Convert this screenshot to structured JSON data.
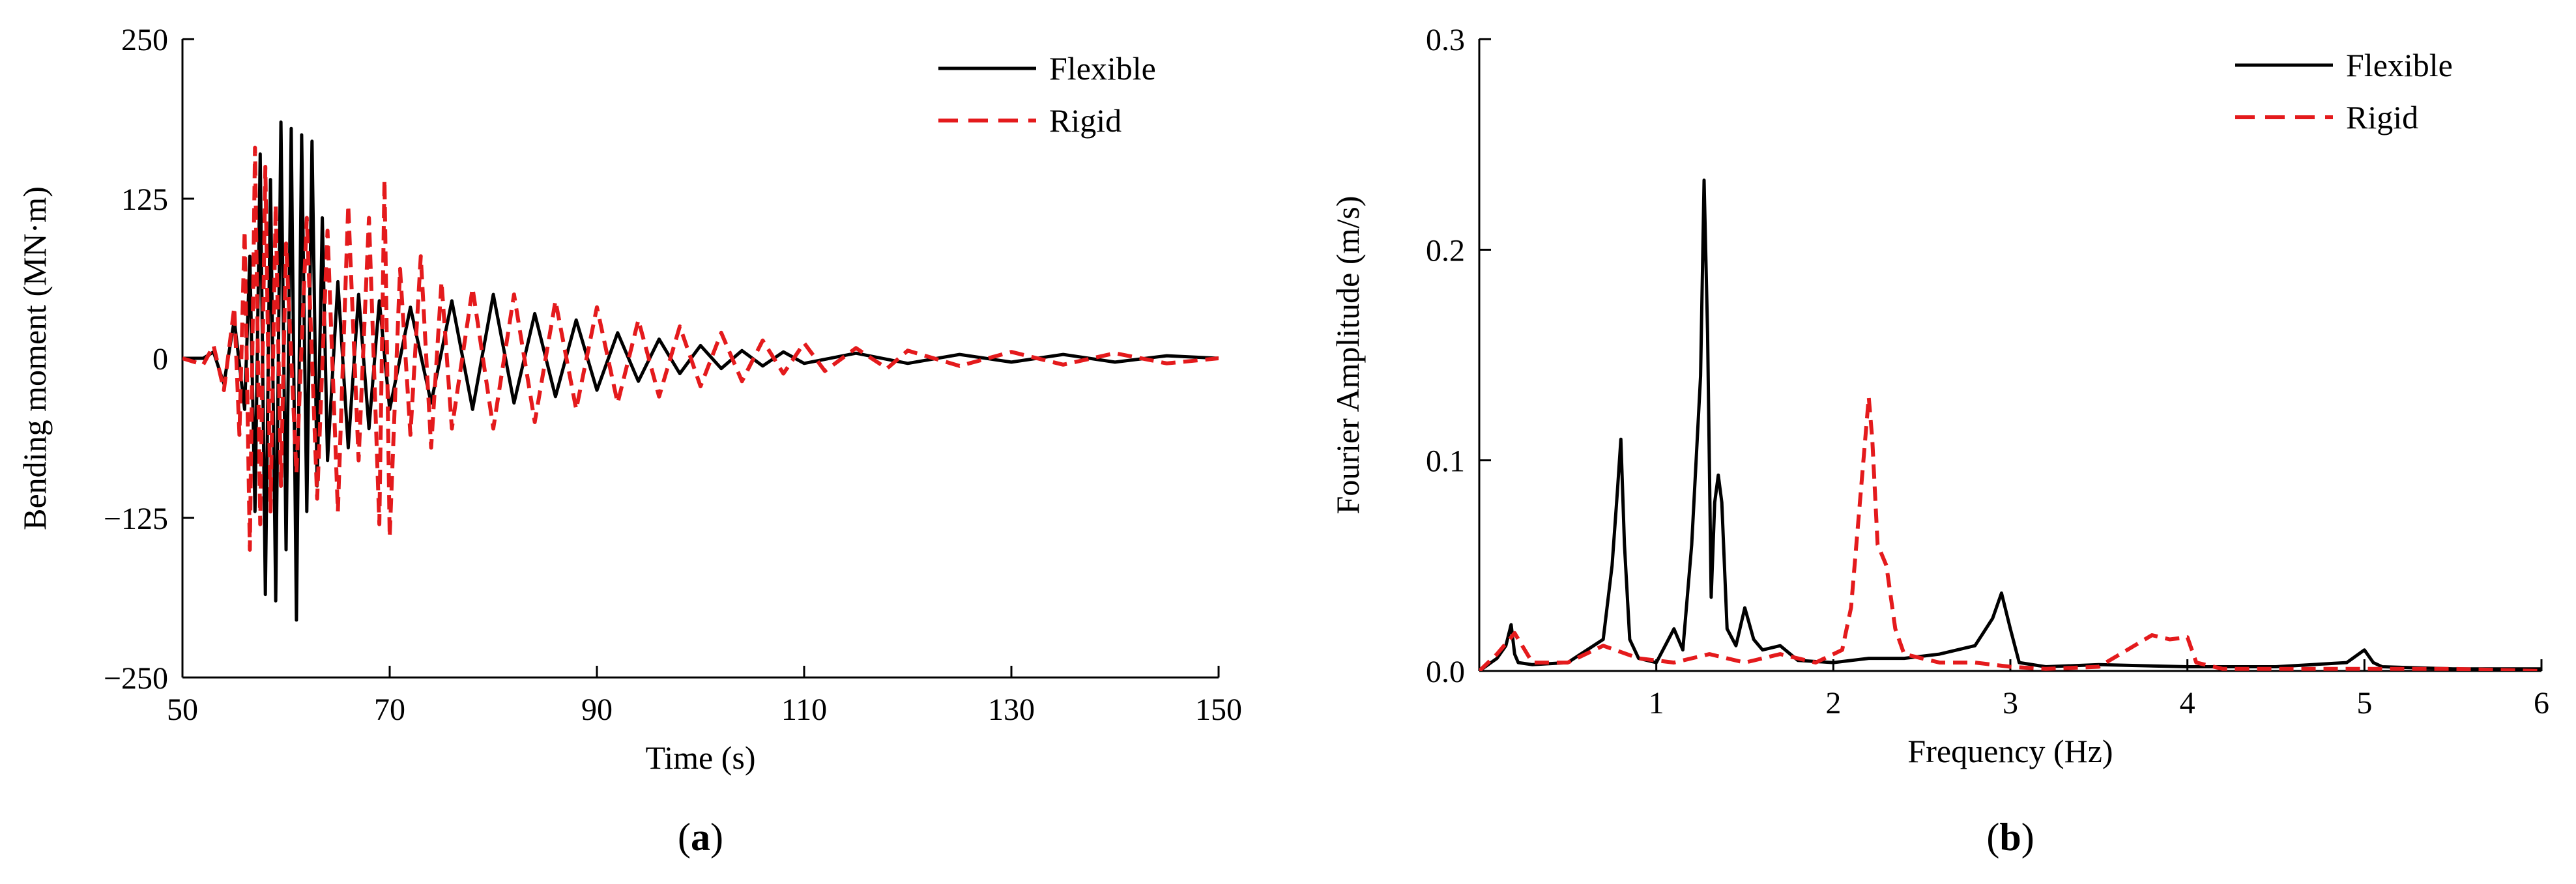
{
  "chart_data": [
    {
      "type": "line",
      "panel_label": "a",
      "xlabel": "Time (s)",
      "ylabel": "Bending moment (MN·m)",
      "xlim": [
        50,
        150
      ],
      "ylim": [
        -250,
        250
      ],
      "xticks": [
        "50",
        "70",
        "90",
        "110",
        "130",
        "150"
      ],
      "yticks": [
        "250",
        "125",
        "0",
        "−125",
        "−250"
      ],
      "grid": false,
      "legend_position": "top-right",
      "series": [
        {
          "name": "Flexible",
          "color": "#000000",
          "style": "solid",
          "x": [
            50,
            52,
            53,
            54,
            55,
            56,
            56.5,
            57,
            57.5,
            58,
            58.5,
            59,
            59.5,
            60,
            60.5,
            61,
            61.5,
            62,
            62.5,
            63,
            63.5,
            64,
            65,
            66,
            67,
            68,
            69,
            70,
            72,
            74,
            76,
            78,
            80,
            82,
            84,
            86,
            88,
            90,
            92,
            94,
            96,
            98,
            100,
            102,
            104,
            106,
            108,
            110,
            115,
            120,
            125,
            130,
            135,
            140,
            145,
            150
          ],
          "y": [
            0,
            0,
            5,
            -20,
            30,
            -40,
            80,
            -120,
            160,
            -185,
            140,
            -190,
            185,
            -150,
            180,
            -205,
            175,
            -120,
            170,
            -100,
            110,
            -80,
            60,
            -70,
            50,
            -55,
            45,
            -40,
            40,
            -35,
            45,
            -40,
            50,
            -35,
            35,
            -30,
            30,
            -25,
            20,
            -18,
            15,
            -12,
            10,
            -8,
            6,
            -6,
            5,
            -4,
            4,
            -4,
            3,
            -3,
            3,
            -3,
            2,
            0
          ]
        },
        {
          "name": "Rigid",
          "color": "#e41a1c",
          "style": "dashed",
          "x": [
            50,
            52,
            53,
            54,
            55,
            55.5,
            56,
            56.5,
            57,
            57.5,
            58,
            58.5,
            59,
            59.5,
            60,
            61,
            62,
            63,
            64,
            65,
            66,
            67,
            68,
            69,
            69.5,
            70,
            71,
            72,
            73,
            74,
            75,
            76,
            78,
            80,
            82,
            84,
            86,
            88,
            90,
            92,
            94,
            96,
            98,
            100,
            102,
            104,
            106,
            108,
            110,
            112,
            115,
            118,
            120,
            125,
            130,
            135,
            140,
            145,
            150
          ],
          "y": [
            0,
            -5,
            10,
            -25,
            40,
            -60,
            100,
            -150,
            165,
            -130,
            150,
            -120,
            120,
            -100,
            90,
            -90,
            110,
            -110,
            100,
            -120,
            120,
            -80,
            110,
            -130,
            140,
            -140,
            70,
            -60,
            80,
            -70,
            60,
            -55,
            55,
            -55,
            50,
            -50,
            45,
            -40,
            40,
            -35,
            30,
            -30,
            25,
            -22,
            20,
            -18,
            14,
            -12,
            12,
            -10,
            8,
            -8,
            6,
            -6,
            5,
            -5,
            4,
            -4,
            0
          ]
        }
      ]
    },
    {
      "type": "line",
      "panel_label": "b",
      "xlabel": "Frequency (Hz)",
      "ylabel": "Fourier Amplitude (m/s)",
      "xlim": [
        0,
        6
      ],
      "ylim": [
        0,
        0.3
      ],
      "xticks": [
        "1",
        "2",
        "3",
        "4",
        "5",
        "6"
      ],
      "yticks": [
        "0.3",
        "0.2",
        "0.1",
        "0.0"
      ],
      "grid": false,
      "legend_position": "top-right",
      "series": [
        {
          "name": "Flexible",
          "color": "#000000",
          "style": "solid",
          "x": [
            0,
            0.1,
            0.15,
            0.18,
            0.2,
            0.22,
            0.3,
            0.5,
            0.7,
            0.75,
            0.78,
            0.8,
            0.82,
            0.85,
            0.9,
            1.0,
            1.05,
            1.1,
            1.15,
            1.2,
            1.25,
            1.27,
            1.29,
            1.31,
            1.33,
            1.35,
            1.37,
            1.4,
            1.45,
            1.5,
            1.55,
            1.6,
            1.7,
            1.8,
            2.0,
            2.2,
            2.4,
            2.6,
            2.8,
            2.9,
            2.95,
            3.0,
            3.05,
            3.2,
            3.5,
            4.0,
            4.5,
            4.9,
            5.0,
            5.05,
            5.1,
            5.5,
            6.0
          ],
          "y": [
            0.0,
            0.006,
            0.012,
            0.022,
            0.008,
            0.004,
            0.003,
            0.004,
            0.015,
            0.05,
            0.085,
            0.11,
            0.06,
            0.015,
            0.006,
            0.004,
            0.012,
            0.02,
            0.01,
            0.06,
            0.14,
            0.233,
            0.16,
            0.035,
            0.08,
            0.093,
            0.08,
            0.02,
            0.012,
            0.03,
            0.015,
            0.01,
            0.012,
            0.005,
            0.004,
            0.006,
            0.006,
            0.008,
            0.012,
            0.025,
            0.037,
            0.02,
            0.004,
            0.002,
            0.003,
            0.002,
            0.002,
            0.004,
            0.01,
            0.004,
            0.002,
            0.001,
            0.001
          ]
        },
        {
          "name": "Rigid",
          "color": "#e41a1c",
          "style": "dashed",
          "x": [
            0,
            0.1,
            0.2,
            0.3,
            0.5,
            0.7,
            0.9,
            1.1,
            1.3,
            1.5,
            1.7,
            1.9,
            2.05,
            2.1,
            2.15,
            2.2,
            2.22,
            2.25,
            2.3,
            2.35,
            2.4,
            2.6,
            2.8,
            3.0,
            3.2,
            3.5,
            3.7,
            3.8,
            3.9,
            4.0,
            4.05,
            4.2,
            4.5,
            5.0,
            5.5,
            6.0
          ],
          "y": [
            0.0,
            0.008,
            0.018,
            0.004,
            0.004,
            0.012,
            0.006,
            0.004,
            0.008,
            0.004,
            0.008,
            0.004,
            0.01,
            0.03,
            0.08,
            0.13,
            0.11,
            0.06,
            0.05,
            0.02,
            0.008,
            0.004,
            0.004,
            0.002,
            0.001,
            0.002,
            0.012,
            0.017,
            0.015,
            0.016,
            0.004,
            0.001,
            0.001,
            0.001,
            0.001,
            0.0
          ]
        }
      ]
    }
  ]
}
